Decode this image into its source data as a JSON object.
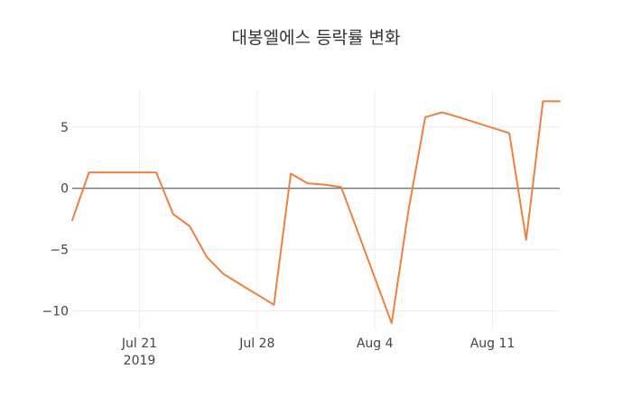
{
  "chart_data": {
    "type": "line",
    "title": "대봉엘에스 등락률 변화",
    "xlabel": "",
    "ylabel": "",
    "color": "#f08040",
    "x_range": [
      "2019-07-17",
      "2019-08-15"
    ],
    "ylim": [
      -11.5,
      8.0
    ],
    "y_ticks": [
      5,
      0,
      -5,
      -10
    ],
    "y_tick_labels": [
      "5",
      "0",
      "−5",
      "−10"
    ],
    "x_ticks": [
      {
        "date": "2019-07-21",
        "label": "Jul 21",
        "sublabel": "2019"
      },
      {
        "date": "2019-07-28",
        "label": "Jul 28",
        "sublabel": ""
      },
      {
        "date": "2019-08-04",
        "label": "Aug 4",
        "sublabel": ""
      },
      {
        "date": "2019-08-11",
        "label": "Aug 11",
        "sublabel": ""
      }
    ],
    "grid": true,
    "zero_line": true,
    "series": [
      {
        "x": [
          "2019-07-17",
          "2019-07-18",
          "2019-07-19",
          "2019-07-22",
          "2019-07-23",
          "2019-07-24",
          "2019-07-25",
          "2019-07-26",
          "2019-07-29",
          "2019-07-30",
          "2019-07-31",
          "2019-08-01",
          "2019-08-02",
          "2019-08-05",
          "2019-08-06",
          "2019-08-07",
          "2019-08-08",
          "2019-08-09",
          "2019-08-12",
          "2019-08-13",
          "2019-08-14",
          "2019-08-15"
        ],
        "values": [
          -2.6,
          1.3,
          1.3,
          1.3,
          -2.1,
          -3.1,
          -5.6,
          -7.0,
          -9.5,
          1.2,
          0.4,
          0.3,
          0.1,
          -11.0,
          -1.8,
          5.8,
          6.2,
          5.8,
          4.5,
          -4.2,
          7.1,
          7.1
        ]
      }
    ]
  }
}
